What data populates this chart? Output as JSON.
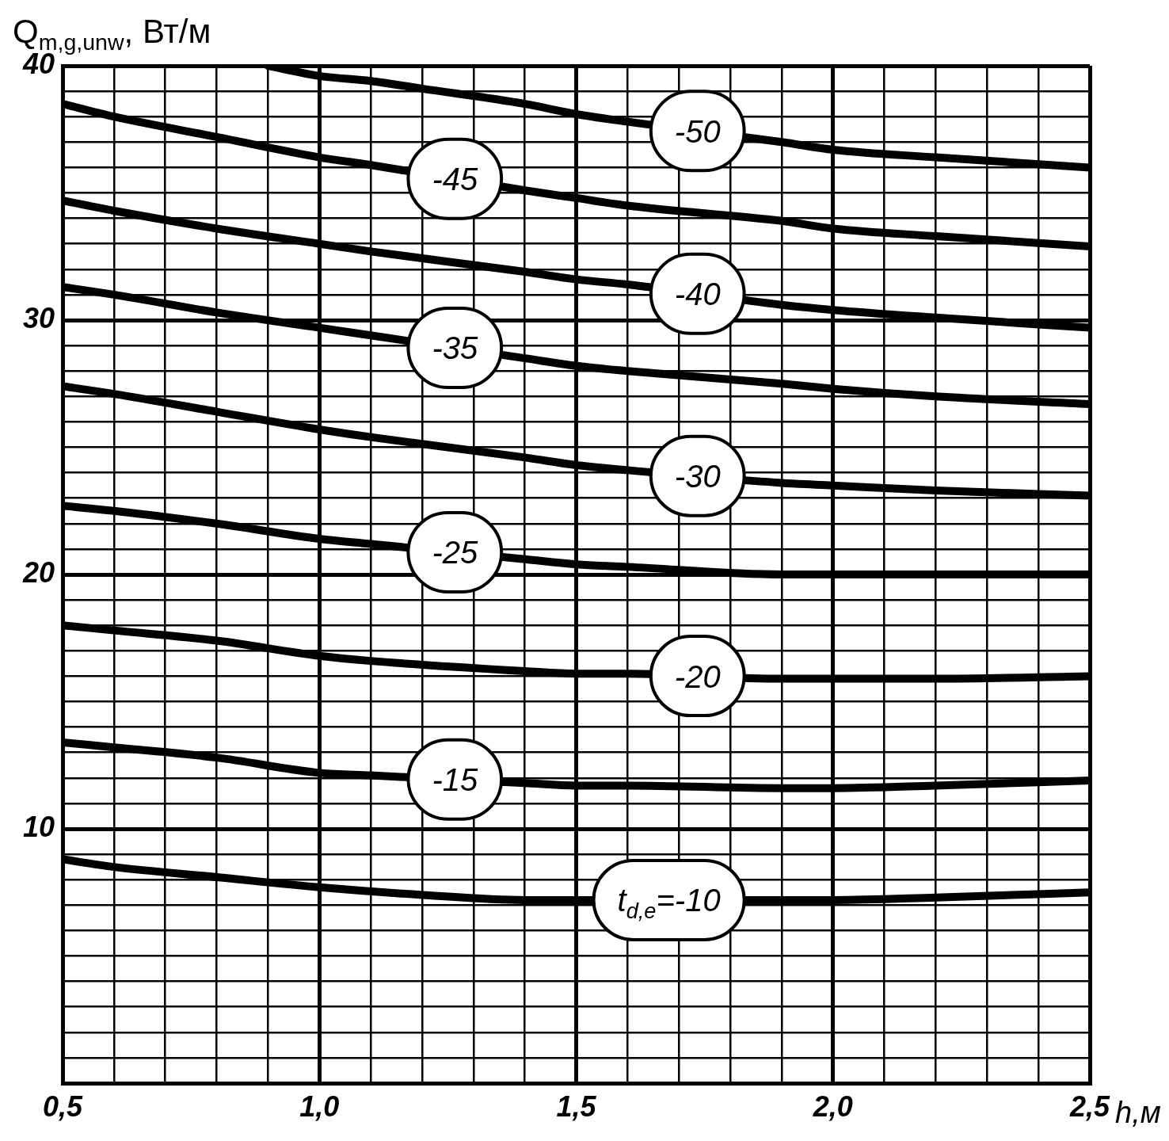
{
  "chart_data": {
    "type": "line",
    "xlabel": "h,м",
    "ylabel": "Q$_{m,g,unw}$, Вт/м",
    "x": [
      0.5,
      0.6,
      0.8,
      1.0,
      1.1,
      1.4,
      1.5,
      1.6,
      1.9,
      2.0,
      2.2,
      2.5
    ],
    "series": [
      {
        "name": "-50",
        "color": "#000000",
        "x": [
          0.9,
          1.0,
          1.1,
          1.2,
          1.4,
          1.5,
          1.6,
          1.9,
          2.0,
          2.2,
          2.5
        ],
        "values": [
          40.0,
          39.6,
          39.4,
          39.1,
          38.5,
          38.1,
          37.8,
          37.0,
          36.7,
          36.4,
          36.0
        ]
      },
      {
        "name": "-45",
        "color": "#000000",
        "values": [
          38.5,
          38.0,
          37.2,
          36.4,
          36.1,
          35.1,
          34.8,
          34.5,
          33.9,
          33.6,
          33.3,
          32.9
        ]
      },
      {
        "name": "-40",
        "color": "#000000",
        "values": [
          34.7,
          34.3,
          33.6,
          33.0,
          32.7,
          31.9,
          31.6,
          31.4,
          30.6,
          30.4,
          30.1,
          29.7
        ]
      },
      {
        "name": "-35",
        "color": "#000000",
        "values": [
          31.3,
          31.0,
          30.3,
          29.7,
          29.4,
          28.5,
          28.2,
          28.0,
          27.5,
          27.3,
          27.0,
          26.7
        ]
      },
      {
        "name": "-30",
        "color": "#000000",
        "values": [
          27.4,
          27.1,
          26.4,
          25.7,
          25.4,
          24.6,
          24.3,
          24.1,
          23.6,
          23.5,
          23.3,
          23.1
        ]
      },
      {
        "name": "-25",
        "color": "#000000",
        "values": [
          22.7,
          22.5,
          22.0,
          21.4,
          21.2,
          20.6,
          20.4,
          20.3,
          20.0,
          20.0,
          20.0,
          20.0
        ]
      },
      {
        "name": "-20",
        "color": "#000000",
        "values": [
          18.0,
          17.8,
          17.4,
          16.8,
          16.6,
          16.2,
          16.1,
          16.1,
          15.9,
          15.9,
          15.9,
          16.0
        ]
      },
      {
        "name": "-15",
        "color": "#000000",
        "values": [
          13.4,
          13.2,
          12.8,
          12.2,
          12.1,
          11.8,
          11.7,
          11.7,
          11.6,
          11.6,
          11.7,
          11.9
        ]
      },
      {
        "name": "t$_{d,e}$=-10",
        "color": "#000000",
        "x": [
          0.5,
          0.6,
          0.8,
          1.0,
          1.2,
          1.4,
          1.9,
          2.0,
          2.2,
          2.5
        ],
        "values": [
          8.8,
          8.5,
          8.1,
          7.7,
          7.4,
          7.2,
          7.2,
          7.2,
          7.3,
          7.5
        ]
      }
    ],
    "xlim": [
      0.5,
      2.5
    ],
    "ylim": [
      0,
      40
    ],
    "xticks": [
      {
        "value": 0.5,
        "label": "0,5"
      },
      {
        "value": 0.6,
        "label": null
      },
      {
        "value": 0.7,
        "label": null
      },
      {
        "value": 0.8,
        "label": null
      },
      {
        "value": 0.9,
        "label": null
      },
      {
        "value": 1.0,
        "label": "1,0"
      },
      {
        "value": 1.1,
        "label": null
      },
      {
        "value": 1.2,
        "label": null
      },
      {
        "value": 1.3,
        "label": null
      },
      {
        "value": 1.4,
        "label": null
      },
      {
        "value": 1.5,
        "label": "1,5"
      },
      {
        "value": 1.6,
        "label": null
      },
      {
        "value": 1.7,
        "label": null
      },
      {
        "value": 1.8,
        "label": null
      },
      {
        "value": 1.9,
        "label": null
      },
      {
        "value": 2.0,
        "label": "2,0"
      },
      {
        "value": 2.1,
        "label": null
      },
      {
        "value": 2.2,
        "label": null
      },
      {
        "value": 2.3,
        "label": null
      },
      {
        "value": 2.4,
        "label": null
      },
      {
        "value": 2.5,
        "label": "2,5"
      }
    ],
    "yticks": [
      {
        "value": 0,
        "label": null
      },
      {
        "value": 1,
        "label": null
      },
      {
        "value": 2,
        "label": null
      },
      {
        "value": 3,
        "label": null
      },
      {
        "value": 4,
        "label": null
      },
      {
        "value": 5,
        "label": null
      },
      {
        "value": 6,
        "label": null
      },
      {
        "value": 7,
        "label": null
      },
      {
        "value": 8,
        "label": null
      },
      {
        "value": 9,
        "label": null
      },
      10,
      {
        "value": 11,
        "label": null
      },
      {
        "value": 12,
        "label": null
      },
      {
        "value": 13,
        "label": null
      },
      {
        "value": 14,
        "label": null
      },
      {
        "value": 15,
        "label": null
      },
      {
        "value": 16,
        "label": null
      },
      {
        "value": 17,
        "label": null
      },
      {
        "value": 18,
        "label": null
      },
      {
        "value": 19,
        "label": null
      },
      20,
      {
        "value": 21,
        "label": null
      },
      {
        "value": 22,
        "label": null
      },
      {
        "value": 23,
        "label": null
      },
      {
        "value": 24,
        "label": null
      },
      {
        "value": 25,
        "label": null
      },
      {
        "value": 26,
        "label": null
      },
      {
        "value": 27,
        "label": null
      },
      {
        "value": 28,
        "label": null
      },
      {
        "value": 29,
        "label": null
      },
      30,
      {
        "value": 31,
        "label": null
      },
      {
        "value": 32,
        "label": null
      },
      {
        "value": 33,
        "label": null
      },
      {
        "value": 34,
        "label": null
      },
      {
        "value": 35,
        "label": null
      },
      {
        "value": 36,
        "label": null
      },
      {
        "value": 37,
        "label": null
      },
      {
        "value": 38,
        "label": null
      },
      {
        "value": 39,
        "label": null
      },
      40
    ],
    "grid": true
  }
}
